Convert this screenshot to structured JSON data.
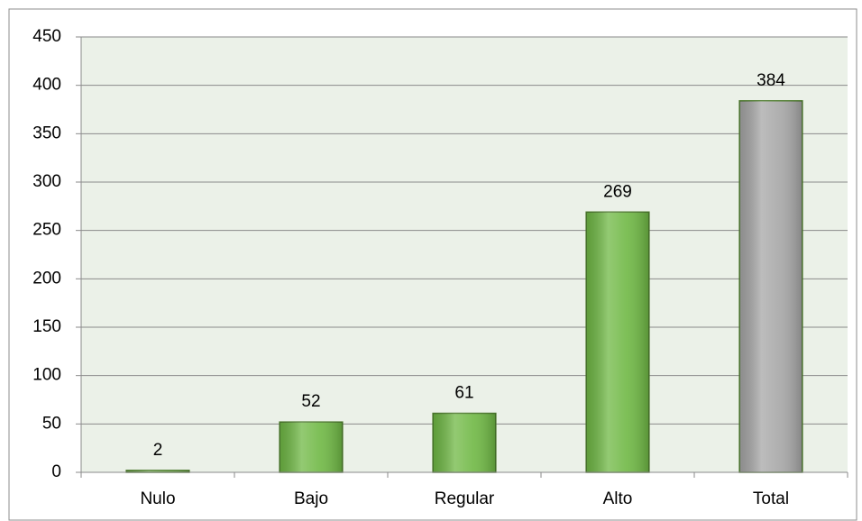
{
  "chart_data": {
    "type": "bar",
    "categories": [
      "Nulo",
      "Bajo",
      "Regular",
      "Alto",
      "Total"
    ],
    "values": [
      2,
      52,
      61,
      269,
      384
    ],
    "colors": [
      "#6fb844",
      "#6fb844",
      "#6fb844",
      "#6fb844",
      "#a6a6a6"
    ],
    "ylim": [
      0,
      450
    ],
    "yticks": [
      0,
      50,
      100,
      150,
      200,
      250,
      300,
      350,
      400,
      450
    ],
    "grid": true
  }
}
